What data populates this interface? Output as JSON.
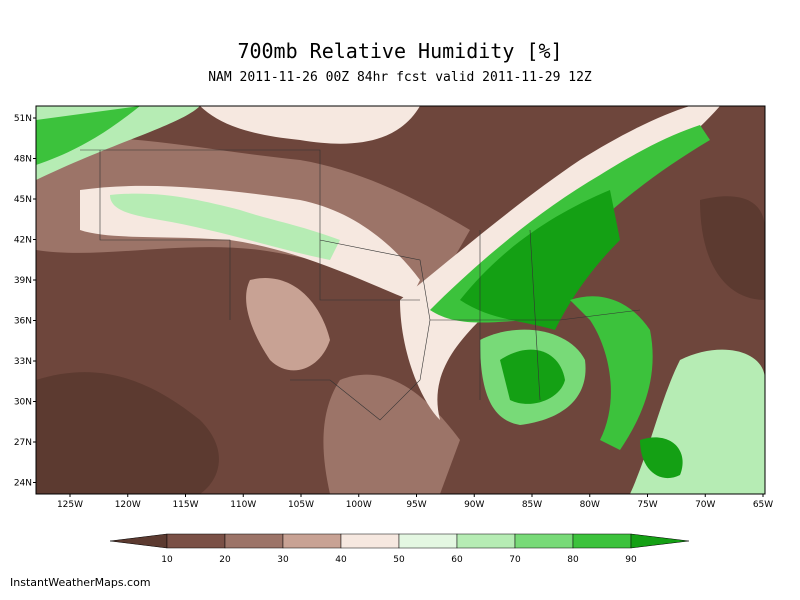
{
  "title": "700mb Relative Humidity [%]",
  "subtitle": "NAM 2011-11-26 00Z 84hr fcst valid 2011-11-29 12Z",
  "map": {
    "lat_labels": [
      "51N",
      "48N",
      "45N",
      "42N",
      "39N",
      "36N",
      "33N",
      "30N",
      "27N",
      "24N"
    ],
    "lon_labels": [
      "125W",
      "120W",
      "115W",
      "110W",
      "105W",
      "100W",
      "95W",
      "90W",
      "85W",
      "80W",
      "75W",
      "70W",
      "65W"
    ]
  },
  "colorbar": {
    "ticks": [
      10,
      20,
      30,
      40,
      50,
      60,
      70,
      80,
      90
    ],
    "colors": [
      "#5c3a30",
      "#7a5046",
      "#9c7468",
      "#c8a294",
      "#f6e8e0",
      "#e4f7e2",
      "#b6ecb4",
      "#78da78",
      "#3cc23c",
      "#14a014"
    ]
  },
  "footer": "InstantWeatherMaps.com"
}
